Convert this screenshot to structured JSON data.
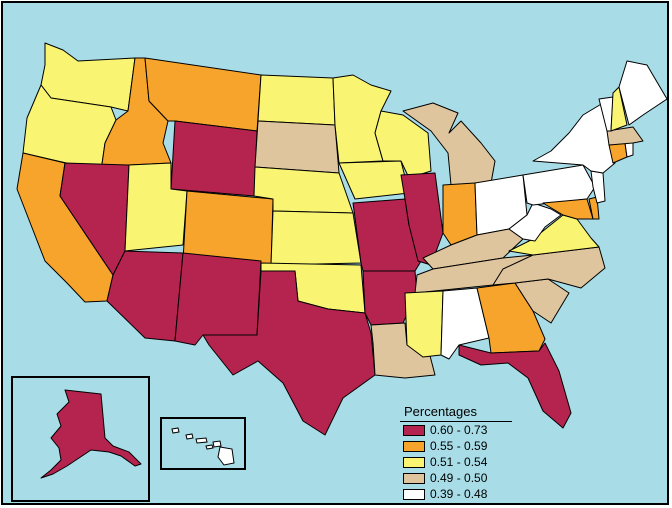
{
  "legend": {
    "title": "Percentages",
    "classes": [
      {
        "label": "0.60 - 0.73",
        "color": "#b5234f"
      },
      {
        "label": "0.55 - 0.59",
        "color": "#f7a42c"
      },
      {
        "label": "0.51 - 0.54",
        "color": "#f9f573"
      },
      {
        "label": "0.49 - 0.50",
        "color": "#dfc59d"
      },
      {
        "label": "0.39 - 0.48",
        "color": "#ffffff"
      }
    ]
  },
  "colors": {
    "ocean": "#a8dde8",
    "border": "#000000"
  }
}
